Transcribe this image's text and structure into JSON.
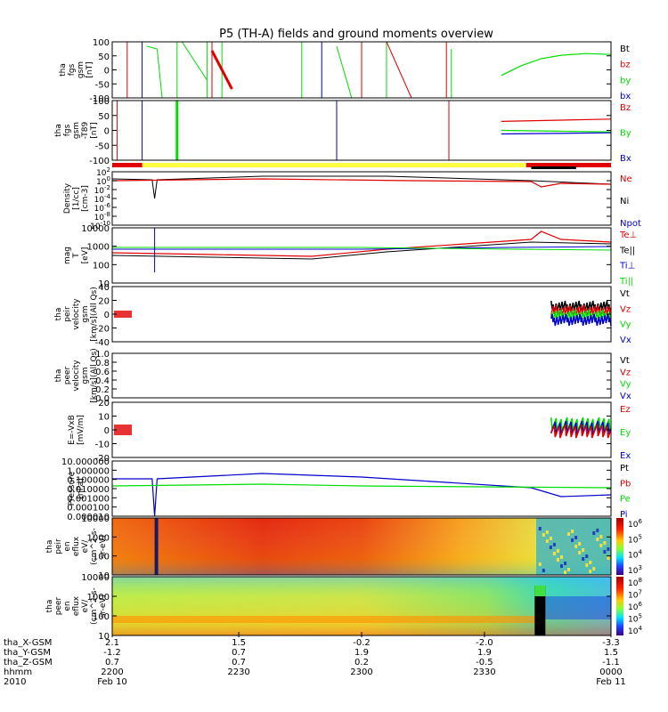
{
  "title": "P5 (TH-A) fields and ground moments overview",
  "colors": {
    "black": "#000000",
    "red": "#e00000",
    "green": "#00dd00",
    "blue": "#0000cc",
    "yellow": "#ffff44"
  },
  "chart_data": {
    "type": "line",
    "panels": [
      {
        "id": "fgs",
        "ylabel": [
          "tha",
          "fgs",
          "gsm",
          "[nT]"
        ],
        "yticks": [
          "100",
          "50",
          "0",
          "-50",
          "-100"
        ],
        "ylim": [
          -100,
          100
        ],
        "legend": [
          {
            "text": "Bt",
            "color": "black"
          },
          {
            "text": "bz",
            "color": "red"
          },
          {
            "text": "by",
            "color": "green"
          },
          {
            "text": "bx",
            "color": "blue"
          }
        ],
        "series": [
          {
            "name": "by",
            "color": "green",
            "x": [
              0.78,
              0.82,
              0.86,
              0.9,
              0.95,
              1.0
            ],
            "y": [
              -20,
              15,
              40,
              52,
              58,
              55
            ]
          }
        ]
      },
      {
        "id": "t89",
        "ylabel": [
          "tha",
          "fgs",
          "gsm",
          "-T89",
          "[nT]"
        ],
        "yticks": [
          "100",
          "50",
          "0",
          "-50",
          "-100"
        ],
        "ylim": [
          -100,
          100
        ],
        "legend": [
          {
            "text": "Bz",
            "color": "red"
          },
          {
            "text": "By",
            "color": "green"
          },
          {
            "text": "Bx",
            "color": "blue"
          }
        ],
        "series": [
          {
            "name": "Bz",
            "color": "red",
            "x": [
              0.78,
              1.0
            ],
            "y": [
              30,
              38
            ]
          },
          {
            "name": "By",
            "color": "green",
            "x": [
              0.78,
              1.0
            ],
            "y": [
              0,
              -5
            ]
          },
          {
            "name": "Bx",
            "color": "blue",
            "x": [
              0.78,
              1.0
            ],
            "y": [
              -12,
              -8
            ]
          }
        ]
      },
      {
        "id": "density",
        "ylabel": [
          "Density",
          "[1/cc]",
          "[cm-3]"
        ],
        "yticks": [
          "10^2",
          "10^0",
          "10^-2",
          "10^-4",
          "10^-6",
          "10^-8",
          "10^-10"
        ],
        "legend": [
          {
            "text": "Ne",
            "color": "red"
          },
          {
            "text": "Ni",
            "color": "black"
          },
          {
            "text": "Npot",
            "color": "blue"
          }
        ],
        "series": []
      },
      {
        "id": "temp",
        "ylabel": [
          "mag",
          "T",
          "[eV]"
        ],
        "yticks": [
          "10000",
          "1000",
          "100",
          "10"
        ],
        "legend": [
          {
            "text": "Te⊥",
            "color": "red"
          },
          {
            "text": "Te||",
            "color": "black"
          },
          {
            "text": "Ti⊥",
            "color": "blue"
          },
          {
            "text": "Ti||",
            "color": "green"
          }
        ],
        "series": []
      },
      {
        "id": "peir_vel",
        "ylabel": [
          "tha",
          "peir",
          "velocity",
          "gsm",
          "[km/s](All Qs)"
        ],
        "yticks": [
          "40",
          "20",
          "0",
          "-20",
          "-40"
        ],
        "legend": [
          {
            "text": "Vt",
            "color": "black"
          },
          {
            "text": "Vz",
            "color": "red"
          },
          {
            "text": "Vy",
            "color": "green"
          },
          {
            "text": "Vx",
            "color": "blue"
          }
        ],
        "series": []
      },
      {
        "id": "peer_vel",
        "ylabel": [
          "tha",
          "peer",
          "velocity",
          "gsm",
          "[km/s](All Qs)"
        ],
        "yticks": [
          "1.0",
          "0.8",
          "0.6",
          "0.4",
          "0.2",
          "0.0"
        ],
        "legend": [
          {
            "text": "Vt",
            "color": "black"
          },
          {
            "text": "Vz",
            "color": "red"
          },
          {
            "text": "Vy",
            "color": "green"
          },
          {
            "text": "Vx",
            "color": "blue"
          }
        ],
        "series": []
      },
      {
        "id": "efield",
        "ylabel": [
          "E=-VxB",
          "[mV/m]"
        ],
        "yticks": [
          "20",
          "10",
          "0",
          "-10",
          "-20"
        ],
        "legend": [
          {
            "text": "Ez",
            "color": "red"
          },
          {
            "text": "Ey",
            "color": "green"
          },
          {
            "text": "Ex",
            "color": "blue"
          }
        ],
        "series": []
      },
      {
        "id": "pressure",
        "ylabel": [
          "Pressure",
          "[nPa]"
        ],
        "yticks": [
          "10.000000",
          "1.000000",
          "0.100000",
          "0.010000",
          "0.001000",
          "0.000100",
          "0.000010"
        ],
        "legend": [
          {
            "text": "Pt",
            "color": "black"
          },
          {
            "text": "Pb",
            "color": "red"
          },
          {
            "text": "Pe",
            "color": "green"
          },
          {
            "text": "Pi",
            "color": "blue"
          }
        ],
        "series": []
      },
      {
        "id": "peir_en",
        "ylabel": [
          "tha",
          "peir",
          "en",
          "eflux",
          "eV/",
          "(cm^2-s-",
          "sr-eV)"
        ],
        "yticks": [
          "10000",
          "1000",
          "100",
          "10"
        ],
        "colorbar": [
          "10^6",
          "10^5",
          "10^4",
          "10^3"
        ]
      },
      {
        "id": "peer_en",
        "ylabel": [
          "tha",
          "peer",
          "en",
          "eflux",
          "eV/",
          "(cm^2-s-",
          "sr-eV)"
        ],
        "yticks": [
          "10000",
          "1000",
          "100",
          "10"
        ],
        "colorbar": [
          "10^8",
          "10^7",
          "10^6",
          "10^5",
          "10^4"
        ]
      }
    ],
    "xaxis": {
      "rows": [
        {
          "label": "tha_X-GSM",
          "values": [
            "2.1",
            "1.5",
            "-0.2",
            "-2.0",
            "-3.3"
          ]
        },
        {
          "label": "tha_Y-GSM",
          "values": [
            "-1.2",
            "0.7",
            "1.9",
            "1.9",
            "1.5"
          ]
        },
        {
          "label": "tha_Z-GSM",
          "values": [
            "0.7",
            "0.7",
            "0.2",
            "-0.5",
            "-1.1"
          ]
        },
        {
          "label": "hhmm",
          "values": [
            "2200",
            "2230",
            "2300",
            "2330",
            "0000"
          ]
        },
        {
          "label": "2010",
          "values": [
            "Feb 10",
            "",
            "",
            "",
            "Feb 11"
          ]
        }
      ]
    }
  }
}
